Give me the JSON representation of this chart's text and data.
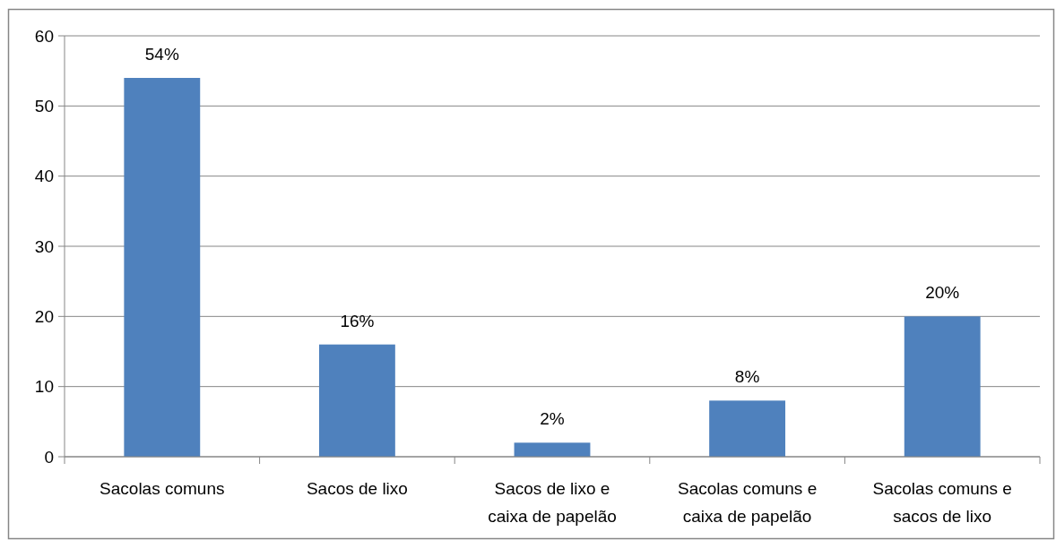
{
  "chart_data": {
    "type": "bar",
    "categories": [
      "Sacolas comuns",
      "Sacos de lixo",
      "Sacos de lixo e caixa de papelão",
      "Sacolas comuns e caixa de papelão",
      "Sacolas comuns e sacos de lixo"
    ],
    "values": [
      54,
      16,
      2,
      8,
      20
    ],
    "color": "#4f81bd",
    "value_labels": [
      "54%",
      "16%",
      "2%",
      "8%",
      "20%"
    ],
    "ylim": [
      0,
      60
    ],
    "yticks": [
      0,
      10,
      20,
      30,
      40,
      50,
      60
    ],
    "grid": "y"
  }
}
